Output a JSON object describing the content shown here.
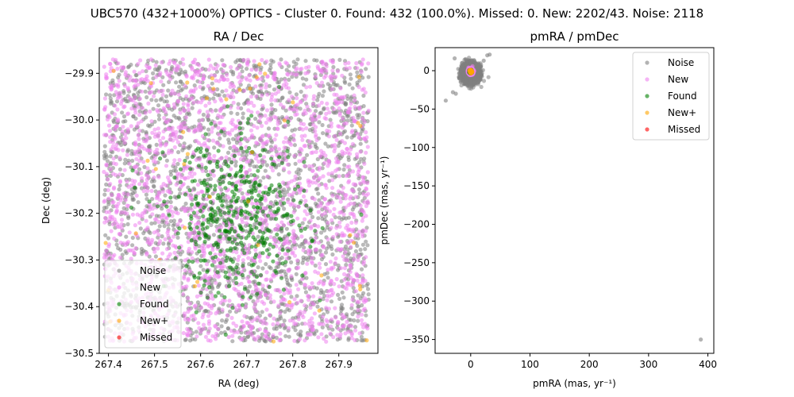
{
  "figure": {
    "suptitle": "UBC570 (432+1000%) OPTICS - Cluster 0. Found: 432 (100.0%). Missed: 0. New: 2202/43. Noise: 2118"
  },
  "chart_data": [
    {
      "type": "scatter",
      "title": "RA / Dec",
      "xlabel": "RA (deg)",
      "ylabel": "Dec (deg)",
      "xlim": [
        267.38,
        267.985
      ],
      "ylim": [
        -30.5,
        -29.845
      ],
      "xticks": [
        267.4,
        267.5,
        267.6,
        267.7,
        267.8,
        267.9
      ],
      "xtick_labels": [
        "267.4",
        "267.5",
        "267.6",
        "267.7",
        "267.8",
        "267.9"
      ],
      "yticks": [
        -29.9,
        -30.0,
        -30.1,
        -30.2,
        -30.3,
        -30.4,
        -30.5
      ],
      "ytick_labels": [
        "−29.9",
        "−30.0",
        "−30.1",
        "−30.2",
        "−30.3",
        "−30.4",
        "−30.5"
      ],
      "grid": false,
      "legend_position": "lower-left",
      "series": [
        {
          "name": "Noise",
          "color": "#808080",
          "count": 2118,
          "distribution": "uniform",
          "x_range": [
            267.39,
            267.965
          ],
          "y_range": [
            -30.475,
            -29.87
          ]
        },
        {
          "name": "New",
          "color": "#ee82ee",
          "count": 2159,
          "distribution": "uniform",
          "x_range": [
            267.39,
            267.965
          ],
          "y_range": [
            -30.475,
            -29.87
          ]
        },
        {
          "name": "Found",
          "color": "#008000",
          "count": 432,
          "distribution": "gaussian",
          "center": [
            267.68,
            -30.21
          ],
          "std": [
            0.075,
            0.085
          ]
        },
        {
          "name": "New+",
          "color": "#ffa500",
          "count": 43,
          "distribution": "uniform",
          "x_range": [
            267.39,
            267.965
          ],
          "y_range": [
            -30.475,
            -29.87
          ]
        },
        {
          "name": "Missed",
          "color": "#ff0000",
          "count": 0
        }
      ]
    },
    {
      "type": "scatter",
      "title": "pmRA / pmDec",
      "xlabel": "pmRA (mas, yr⁻¹)",
      "ylabel": "pmDec (mas, yr⁻¹)",
      "xlim": [
        -60,
        410
      ],
      "ylim": [
        -368,
        30
      ],
      "xticks": [
        0,
        100,
        200,
        300,
        400
      ],
      "xtick_labels": [
        "0",
        "100",
        "200",
        "300",
        "400"
      ],
      "yticks": [
        0,
        -50,
        -100,
        -150,
        -200,
        -250,
        -300,
        -350
      ],
      "ytick_labels": [
        "0",
        "−50",
        "−100",
        "−150",
        "−200",
        "−250",
        "−300",
        "−350"
      ],
      "grid": false,
      "legend_position": "top-right",
      "series": [
        {
          "name": "Noise",
          "color": "#808080",
          "count": 2118,
          "distribution": "gaussian",
          "center": [
            0,
            -3
          ],
          "std": [
            7,
            6
          ],
          "outliers": [
            [
              388,
              -350
            ],
            [
              -42,
              -39
            ],
            [
              -30,
              -28
            ],
            [
              -27,
              16
            ],
            [
              28,
              20
            ],
            [
              32,
              21
            ],
            [
              22,
              13
            ],
            [
              -25,
              -30
            ]
          ]
        },
        {
          "name": "New",
          "color": "#ee82ee",
          "count": 2159,
          "distribution": "gaussian",
          "center": [
            0,
            -1
          ],
          "std": [
            1.6,
            1.6
          ]
        },
        {
          "name": "Found",
          "color": "#008000",
          "count": 432,
          "distribution": "gaussian",
          "center": [
            0,
            -1
          ],
          "std": [
            0.8,
            0.8
          ]
        },
        {
          "name": "New+",
          "color": "#ffa500",
          "count": 43,
          "distribution": "gaussian",
          "center": [
            0,
            -1
          ],
          "std": [
            1.2,
            1.2
          ]
        },
        {
          "name": "Missed",
          "color": "#ff0000",
          "count": 0
        }
      ]
    }
  ]
}
